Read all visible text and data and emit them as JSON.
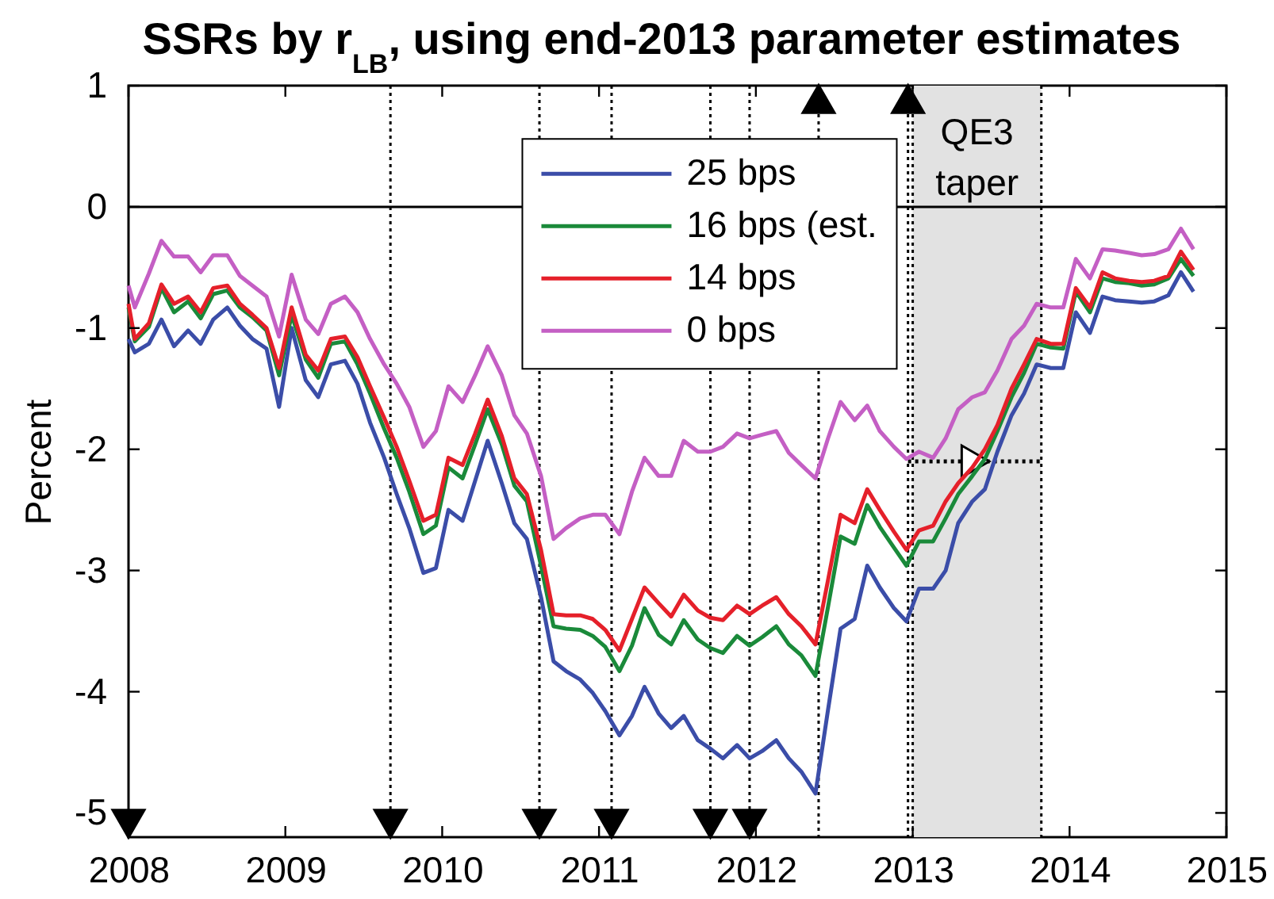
{
  "chart_data": {
    "type": "line",
    "title": "SSRs by r$_{LB}$, using end-2013 parameter estimates",
    "ylabel": "Percent",
    "xlim": [
      2008,
      2015
    ],
    "xticks": [
      2008,
      2009,
      2010,
      2011,
      2012,
      2013,
      2014,
      2015
    ],
    "ylim": [
      -5.2,
      1
    ],
    "yticks": [
      -5,
      -4,
      -3,
      -2,
      -1,
      0,
      1
    ],
    "legend": "top",
    "x": [
      2008.0,
      2008.04,
      2008.13,
      2008.21,
      2008.29,
      2008.38,
      2008.46,
      2008.54,
      2008.63,
      2008.71,
      2008.79,
      2008.88,
      2008.96,
      2009.04,
      2009.13,
      2009.21,
      2009.29,
      2009.38,
      2009.46,
      2009.54,
      2009.63,
      2009.71,
      2009.79,
      2009.88,
      2009.96,
      2010.04,
      2010.13,
      2010.21,
      2010.29,
      2010.38,
      2010.46,
      2010.54,
      2010.63,
      2010.71,
      2010.79,
      2010.88,
      2010.96,
      2011.04,
      2011.13,
      2011.21,
      2011.29,
      2011.38,
      2011.46,
      2011.54,
      2011.63,
      2011.71,
      2011.79,
      2011.88,
      2011.96,
      2012.04,
      2012.13,
      2012.21,
      2012.29,
      2012.38,
      2012.46,
      2012.54,
      2012.63,
      2012.71,
      2012.79,
      2012.88,
      2012.96,
      2013.04,
      2013.13,
      2013.21,
      2013.29,
      2013.38,
      2013.46,
      2013.54,
      2013.63,
      2013.71,
      2013.79,
      2013.88,
      2013.96,
      2014.04,
      2014.13,
      2014.21,
      2014.29,
      2014.38,
      2014.46,
      2014.54,
      2014.63,
      2014.71,
      2014.79
    ],
    "series": [
      {
        "type": "scatter",
        "marker": "triangle",
        "color": "#000000",
        "x": [
          2008.0,
          2009.67,
          2010.62,
          2011.08,
          2011.71,
          2011.96,
          2012.4,
          2012.97
        ],
        "values": [
          -5.09,
          -5.09,
          -5.09,
          -5.09,
          -5.09,
          -5.09,
          0.89,
          0.89
        ]
      },
      {
        "type": "line",
        "line_style": "dotted",
        "color": "#000000",
        "x": [
          2012.97,
          2013.82
        ],
        "values": [
          -2.1,
          -2.1
        ]
      },
      {
        "type": "scatter",
        "marker": "triangle",
        "color": "#ffffff",
        "x": [
          2013.4
        ],
        "values": [
          -2.1
        ]
      },
      {
        "name": "25 bps",
        "color": "#3b4da8",
        "values": [
          -1.09,
          -1.2,
          -1.13,
          -0.93,
          -1.15,
          -1.02,
          -1.13,
          -0.93,
          -0.83,
          -0.98,
          -1.09,
          -1.17,
          -1.65,
          -1.0,
          -1.43,
          -1.57,
          -1.3,
          -1.27,
          -1.46,
          -1.78,
          -2.07,
          -2.37,
          -2.65,
          -3.02,
          -2.98,
          -2.5,
          -2.59,
          -2.26,
          -1.93,
          -2.28,
          -2.61,
          -2.74,
          -3.22,
          -3.75,
          -3.83,
          -3.9,
          -4.01,
          -4.16,
          -4.36,
          -4.2,
          -3.96,
          -4.18,
          -4.3,
          -4.2,
          -4.4,
          -4.47,
          -4.55,
          -4.44,
          -4.55,
          -4.49,
          -4.4,
          -4.55,
          -4.66,
          -4.84,
          -4.15,
          -3.48,
          -3.4,
          -2.96,
          -3.14,
          -3.31,
          -3.42,
          -3.15,
          -3.15,
          -3.0,
          -2.61,
          -2.43,
          -2.33,
          -2.02,
          -1.72,
          -1.54,
          -1.3,
          -1.33,
          -1.33,
          -0.87,
          -1.04,
          -0.74,
          -0.77,
          -0.78,
          -0.79,
          -0.78,
          -0.73,
          -0.54,
          -0.7
        ]
      },
      {
        "name": "16 bps (est.",
        "color": "#1a8a3a",
        "values": [
          -0.83,
          -1.11,
          -0.99,
          -0.67,
          -0.87,
          -0.78,
          -0.92,
          -0.72,
          -0.69,
          -0.83,
          -0.91,
          -1.02,
          -1.39,
          -0.89,
          -1.26,
          -1.41,
          -1.13,
          -1.11,
          -1.3,
          -1.54,
          -1.83,
          -2.07,
          -2.35,
          -2.7,
          -2.63,
          -2.15,
          -2.24,
          -1.96,
          -1.67,
          -1.96,
          -2.3,
          -2.43,
          -2.96,
          -3.46,
          -3.48,
          -3.49,
          -3.54,
          -3.63,
          -3.83,
          -3.62,
          -3.31,
          -3.53,
          -3.61,
          -3.41,
          -3.57,
          -3.64,
          -3.68,
          -3.54,
          -3.62,
          -3.55,
          -3.46,
          -3.61,
          -3.7,
          -3.87,
          -3.3,
          -2.72,
          -2.78,
          -2.46,
          -2.64,
          -2.81,
          -2.96,
          -2.76,
          -2.76,
          -2.57,
          -2.37,
          -2.22,
          -2.08,
          -1.85,
          -1.57,
          -1.37,
          -1.13,
          -1.16,
          -1.17,
          -0.7,
          -0.87,
          -0.59,
          -0.62,
          -0.63,
          -0.65,
          -0.64,
          -0.59,
          -0.43,
          -0.57
        ]
      },
      {
        "name": "14 bps",
        "color": "#e5202a",
        "values": [
          -0.8,
          -1.09,
          -0.96,
          -0.64,
          -0.8,
          -0.74,
          -0.87,
          -0.67,
          -0.65,
          -0.8,
          -0.89,
          -1.0,
          -1.33,
          -0.83,
          -1.22,
          -1.35,
          -1.09,
          -1.07,
          -1.24,
          -1.48,
          -1.74,
          -1.98,
          -2.26,
          -2.59,
          -2.54,
          -2.07,
          -2.13,
          -1.87,
          -1.59,
          -1.89,
          -2.24,
          -2.37,
          -2.83,
          -3.36,
          -3.37,
          -3.37,
          -3.4,
          -3.49,
          -3.66,
          -3.4,
          -3.14,
          -3.27,
          -3.38,
          -3.2,
          -3.33,
          -3.39,
          -3.41,
          -3.29,
          -3.36,
          -3.29,
          -3.22,
          -3.36,
          -3.46,
          -3.61,
          -3.08,
          -2.54,
          -2.61,
          -2.33,
          -2.5,
          -2.68,
          -2.83,
          -2.67,
          -2.63,
          -2.43,
          -2.28,
          -2.15,
          -2.0,
          -1.8,
          -1.5,
          -1.3,
          -1.09,
          -1.13,
          -1.13,
          -0.67,
          -0.83,
          -0.54,
          -0.59,
          -0.61,
          -0.62,
          -0.61,
          -0.57,
          -0.37,
          -0.52
        ]
      },
      {
        "name": "0 bps",
        "color": "#c45fc4",
        "values": [
          -0.65,
          -0.83,
          -0.55,
          -0.28,
          -0.41,
          -0.41,
          -0.54,
          -0.4,
          -0.4,
          -0.57,
          -0.65,
          -0.74,
          -1.07,
          -0.56,
          -0.93,
          -1.05,
          -0.8,
          -0.74,
          -0.87,
          -1.09,
          -1.3,
          -1.46,
          -1.65,
          -1.98,
          -1.85,
          -1.48,
          -1.61,
          -1.39,
          -1.15,
          -1.39,
          -1.72,
          -1.87,
          -2.22,
          -2.74,
          -2.65,
          -2.57,
          -2.54,
          -2.54,
          -2.7,
          -2.35,
          -2.07,
          -2.22,
          -2.22,
          -1.93,
          -2.02,
          -2.02,
          -1.98,
          -1.87,
          -1.91,
          -1.88,
          -1.85,
          -2.03,
          -2.13,
          -2.24,
          -1.91,
          -1.61,
          -1.76,
          -1.64,
          -1.85,
          -1.98,
          -2.08,
          -2.02,
          -2.07,
          -1.91,
          -1.67,
          -1.57,
          -1.53,
          -1.35,
          -1.09,
          -0.98,
          -0.8,
          -0.83,
          -0.83,
          -0.43,
          -0.59,
          -0.35,
          -0.36,
          -0.38,
          -0.4,
          -0.39,
          -0.35,
          -0.18,
          -0.35
        ]
      }
    ],
    "ref_lines": [
      {
        "axis": "y",
        "value": 0,
        "color": "#000000",
        "line_style": "solid"
      },
      {
        "axis": "x",
        "value": 2009.67,
        "color": "#000000",
        "line_style": "dotted"
      },
      {
        "axis": "x",
        "value": 2010.62,
        "color": "#000000",
        "line_style": "dotted"
      },
      {
        "axis": "x",
        "value": 2011.08,
        "color": "#000000",
        "line_style": "dotted"
      },
      {
        "axis": "x",
        "value": 2011.71,
        "color": "#000000",
        "line_style": "dotted"
      },
      {
        "axis": "x",
        "value": 2011.96,
        "color": "#000000",
        "line_style": "dotted"
      },
      {
        "axis": "x",
        "value": 2012.4,
        "color": "#000000",
        "line_style": "dotted"
      },
      {
        "axis": "x",
        "value": 2012.97,
        "color": "#000000",
        "line_style": "dotted"
      },
      {
        "axis": "x",
        "value": 2013.0,
        "color": "#000000",
        "line_style": "dotted"
      },
      {
        "axis": "x",
        "value": 2013.82,
        "color": "#000000",
        "line_style": "dotted"
      }
    ],
    "bands": [
      {
        "axis": "x",
        "from": 2013.0,
        "to": 2013.82,
        "label": "QE3 taper",
        "color": "#e2e2e2"
      }
    ]
  }
}
